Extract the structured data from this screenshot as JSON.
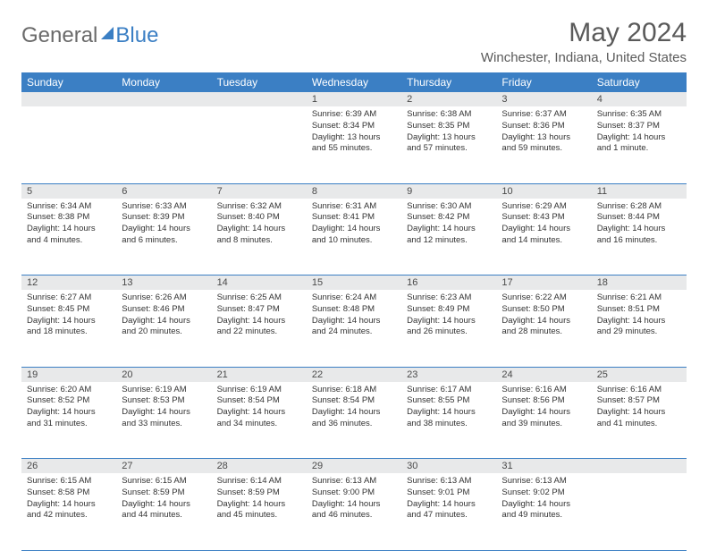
{
  "brand": {
    "part1": "General",
    "part2": "Blue"
  },
  "title": "May 2024",
  "location": "Winchester, Indiana, United States",
  "day_headers": [
    "Sunday",
    "Monday",
    "Tuesday",
    "Wednesday",
    "Thursday",
    "Friday",
    "Saturday"
  ],
  "colors": {
    "accent": "#3b7fc4",
    "daynum_bg": "#e8e9ea",
    "text": "#333333",
    "muted": "#5a5a5a",
    "bg": "#ffffff"
  },
  "weeks": [
    [
      null,
      null,
      null,
      {
        "n": "1",
        "sr": "Sunrise: 6:39 AM",
        "ss": "Sunset: 8:34 PM",
        "dl": "Daylight: 13 hours and 55 minutes."
      },
      {
        "n": "2",
        "sr": "Sunrise: 6:38 AM",
        "ss": "Sunset: 8:35 PM",
        "dl": "Daylight: 13 hours and 57 minutes."
      },
      {
        "n": "3",
        "sr": "Sunrise: 6:37 AM",
        "ss": "Sunset: 8:36 PM",
        "dl": "Daylight: 13 hours and 59 minutes."
      },
      {
        "n": "4",
        "sr": "Sunrise: 6:35 AM",
        "ss": "Sunset: 8:37 PM",
        "dl": "Daylight: 14 hours and 1 minute."
      }
    ],
    [
      {
        "n": "5",
        "sr": "Sunrise: 6:34 AM",
        "ss": "Sunset: 8:38 PM",
        "dl": "Daylight: 14 hours and 4 minutes."
      },
      {
        "n": "6",
        "sr": "Sunrise: 6:33 AM",
        "ss": "Sunset: 8:39 PM",
        "dl": "Daylight: 14 hours and 6 minutes."
      },
      {
        "n": "7",
        "sr": "Sunrise: 6:32 AM",
        "ss": "Sunset: 8:40 PM",
        "dl": "Daylight: 14 hours and 8 minutes."
      },
      {
        "n": "8",
        "sr": "Sunrise: 6:31 AM",
        "ss": "Sunset: 8:41 PM",
        "dl": "Daylight: 14 hours and 10 minutes."
      },
      {
        "n": "9",
        "sr": "Sunrise: 6:30 AM",
        "ss": "Sunset: 8:42 PM",
        "dl": "Daylight: 14 hours and 12 minutes."
      },
      {
        "n": "10",
        "sr": "Sunrise: 6:29 AM",
        "ss": "Sunset: 8:43 PM",
        "dl": "Daylight: 14 hours and 14 minutes."
      },
      {
        "n": "11",
        "sr": "Sunrise: 6:28 AM",
        "ss": "Sunset: 8:44 PM",
        "dl": "Daylight: 14 hours and 16 minutes."
      }
    ],
    [
      {
        "n": "12",
        "sr": "Sunrise: 6:27 AM",
        "ss": "Sunset: 8:45 PM",
        "dl": "Daylight: 14 hours and 18 minutes."
      },
      {
        "n": "13",
        "sr": "Sunrise: 6:26 AM",
        "ss": "Sunset: 8:46 PM",
        "dl": "Daylight: 14 hours and 20 minutes."
      },
      {
        "n": "14",
        "sr": "Sunrise: 6:25 AM",
        "ss": "Sunset: 8:47 PM",
        "dl": "Daylight: 14 hours and 22 minutes."
      },
      {
        "n": "15",
        "sr": "Sunrise: 6:24 AM",
        "ss": "Sunset: 8:48 PM",
        "dl": "Daylight: 14 hours and 24 minutes."
      },
      {
        "n": "16",
        "sr": "Sunrise: 6:23 AM",
        "ss": "Sunset: 8:49 PM",
        "dl": "Daylight: 14 hours and 26 minutes."
      },
      {
        "n": "17",
        "sr": "Sunrise: 6:22 AM",
        "ss": "Sunset: 8:50 PM",
        "dl": "Daylight: 14 hours and 28 minutes."
      },
      {
        "n": "18",
        "sr": "Sunrise: 6:21 AM",
        "ss": "Sunset: 8:51 PM",
        "dl": "Daylight: 14 hours and 29 minutes."
      }
    ],
    [
      {
        "n": "19",
        "sr": "Sunrise: 6:20 AM",
        "ss": "Sunset: 8:52 PM",
        "dl": "Daylight: 14 hours and 31 minutes."
      },
      {
        "n": "20",
        "sr": "Sunrise: 6:19 AM",
        "ss": "Sunset: 8:53 PM",
        "dl": "Daylight: 14 hours and 33 minutes."
      },
      {
        "n": "21",
        "sr": "Sunrise: 6:19 AM",
        "ss": "Sunset: 8:54 PM",
        "dl": "Daylight: 14 hours and 34 minutes."
      },
      {
        "n": "22",
        "sr": "Sunrise: 6:18 AM",
        "ss": "Sunset: 8:54 PM",
        "dl": "Daylight: 14 hours and 36 minutes."
      },
      {
        "n": "23",
        "sr": "Sunrise: 6:17 AM",
        "ss": "Sunset: 8:55 PM",
        "dl": "Daylight: 14 hours and 38 minutes."
      },
      {
        "n": "24",
        "sr": "Sunrise: 6:16 AM",
        "ss": "Sunset: 8:56 PM",
        "dl": "Daylight: 14 hours and 39 minutes."
      },
      {
        "n": "25",
        "sr": "Sunrise: 6:16 AM",
        "ss": "Sunset: 8:57 PM",
        "dl": "Daylight: 14 hours and 41 minutes."
      }
    ],
    [
      {
        "n": "26",
        "sr": "Sunrise: 6:15 AM",
        "ss": "Sunset: 8:58 PM",
        "dl": "Daylight: 14 hours and 42 minutes."
      },
      {
        "n": "27",
        "sr": "Sunrise: 6:15 AM",
        "ss": "Sunset: 8:59 PM",
        "dl": "Daylight: 14 hours and 44 minutes."
      },
      {
        "n": "28",
        "sr": "Sunrise: 6:14 AM",
        "ss": "Sunset: 8:59 PM",
        "dl": "Daylight: 14 hours and 45 minutes."
      },
      {
        "n": "29",
        "sr": "Sunrise: 6:13 AM",
        "ss": "Sunset: 9:00 PM",
        "dl": "Daylight: 14 hours and 46 minutes."
      },
      {
        "n": "30",
        "sr": "Sunrise: 6:13 AM",
        "ss": "Sunset: 9:01 PM",
        "dl": "Daylight: 14 hours and 47 minutes."
      },
      {
        "n": "31",
        "sr": "Sunrise: 6:13 AM",
        "ss": "Sunset: 9:02 PM",
        "dl": "Daylight: 14 hours and 49 minutes."
      },
      null
    ]
  ]
}
